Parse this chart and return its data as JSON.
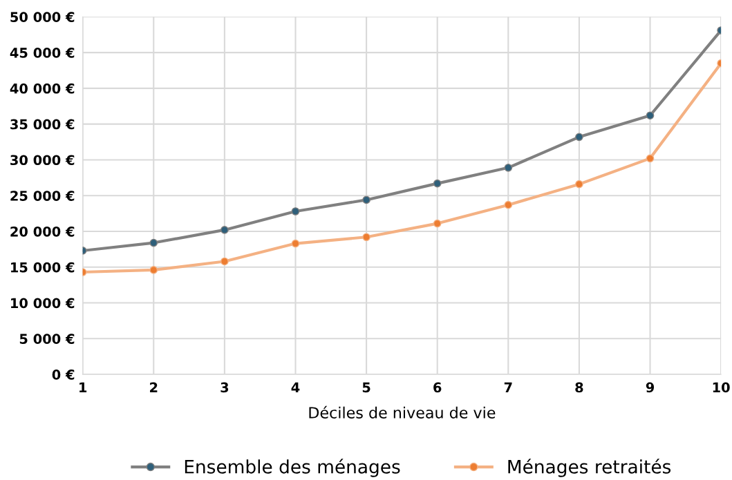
{
  "chart_data": {
    "type": "line",
    "xlabel": "Déciles de niveau de vie",
    "x": [
      1,
      2,
      3,
      4,
      5,
      6,
      7,
      8,
      9,
      10
    ],
    "series": [
      {
        "name": "Ensemble des ménages",
        "color": "#808080",
        "colors": [
          "#2e5f7a",
          "#2e5f7a",
          "#2e5f7a",
          "#2e5f7a",
          "#2e5f7a",
          "#2e5f7a",
          "#2e5f7a",
          "#2e5f7a",
          "#2e5f7a",
          "#2e5f7a"
        ],
        "values": [
          17300,
          18400,
          20200,
          22800,
          24400,
          26700,
          28900,
          33200,
          36200,
          48100
        ]
      },
      {
        "name": "Ménages retraités",
        "color": "#f4b183",
        "colors": [
          "#ed7d31",
          "#ed7d31",
          "#ed7d31",
          "#ed7d31",
          "#ed7d31",
          "#ed7d31",
          "#ed7d31",
          "#ed7d31",
          "#ed7d31",
          "#ed7d31"
        ],
        "values": [
          14300,
          14600,
          15800,
          18300,
          19200,
          21100,
          23700,
          26600,
          30200,
          43500
        ]
      }
    ],
    "xlim": [
      1,
      10
    ],
    "xticks": [
      1,
      2,
      3,
      4,
      5,
      6,
      7,
      8,
      9,
      10
    ],
    "ylim": [
      0,
      50000
    ],
    "yticks": [
      {
        "value": 0,
        "label": "0 €"
      },
      {
        "value": 5000,
        "label": "5 000 €"
      },
      {
        "value": 10000,
        "label": "10 000 €"
      },
      {
        "value": 15000,
        "label": "15 000 €"
      },
      {
        "value": 20000,
        "label": "20 000 €"
      },
      {
        "value": 25000,
        "label": "25 000 €"
      },
      {
        "value": 30000,
        "label": "30 000 €"
      },
      {
        "value": 35000,
        "label": "35 000 €"
      },
      {
        "value": 40000,
        "label": "40 000 €"
      },
      {
        "value": 45000,
        "label": "45 000 €"
      },
      {
        "value": 50000,
        "label": "50 000 €"
      }
    ],
    "grid": true,
    "legend": "bottom",
    "marker": "circle",
    "line_style": "solid"
  }
}
